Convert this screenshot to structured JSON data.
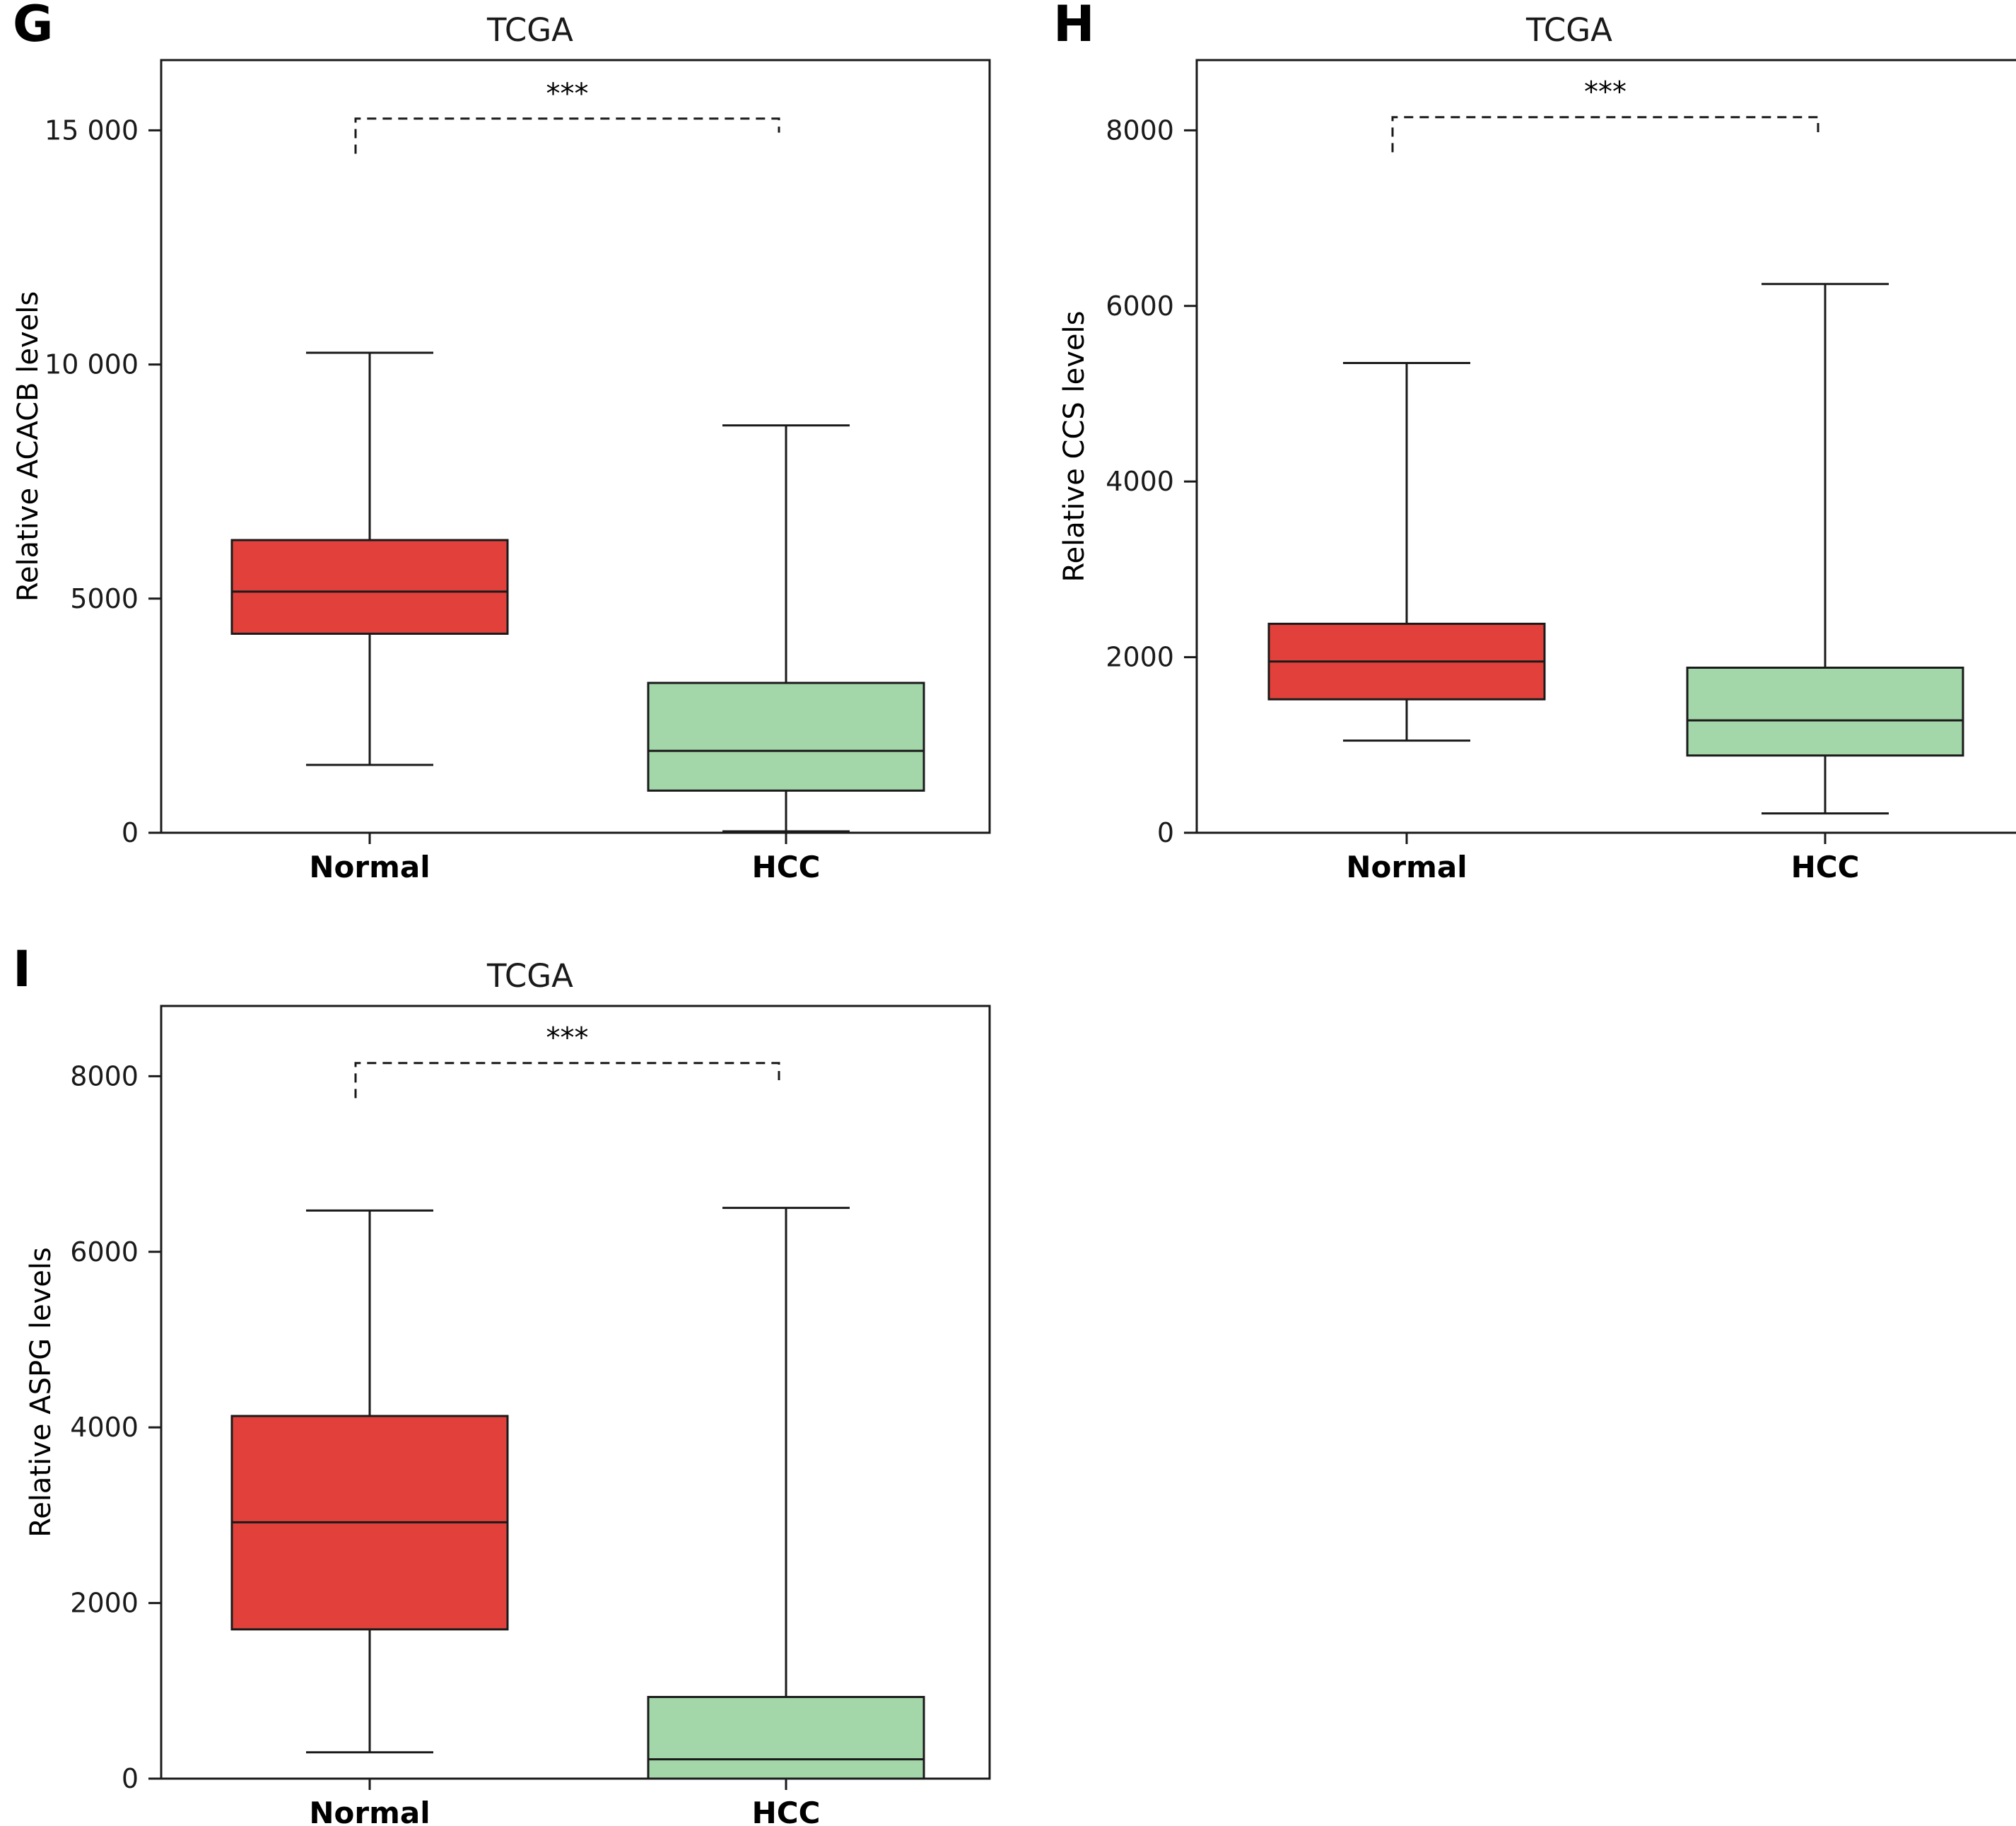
{
  "colors": {
    "normal": "#e2413b",
    "hcc": "#a3d6a9",
    "stroke": "#1a1a1a"
  },
  "chart_data": [
    {
      "panel": "G",
      "type": "box",
      "title": "TCGA",
      "xlabel": "",
      "ylabel": "Relative ACACB levels",
      "categories": [
        "Normal",
        "HCC"
      ],
      "ylim": [
        0,
        16500
      ],
      "yticks": [
        0,
        5000,
        10000,
        15000
      ],
      "ytick_labels": [
        "0",
        "5000",
        "10 000",
        "15 000"
      ],
      "series": [
        {
          "whisker_low": 1450,
          "q1": 4250,
          "median": 5150,
          "q3": 6250,
          "whisker_high": 10250
        },
        {
          "whisker_low": 30,
          "q1": 900,
          "median": 1750,
          "q3": 3200,
          "whisker_high": 8700
        }
      ],
      "significance": {
        "text": "***",
        "line_y": 15250,
        "left_end": 14500,
        "right_end": 14950
      }
    },
    {
      "panel": "H",
      "type": "box",
      "title": "TCGA",
      "xlabel": "",
      "ylabel": "Relative CCS levels",
      "categories": [
        "Normal",
        "HCC"
      ],
      "ylim": [
        0,
        8800
      ],
      "yticks": [
        0,
        2000,
        4000,
        6000,
        8000
      ],
      "ytick_labels": [
        "0",
        "2000",
        "4000",
        "6000",
        "8000"
      ],
      "series": [
        {
          "whisker_low": 1050,
          "q1": 1520,
          "median": 1950,
          "q3": 2380,
          "whisker_high": 5350
        },
        {
          "whisker_low": 220,
          "q1": 880,
          "median": 1280,
          "q3": 1880,
          "whisker_high": 6250
        }
      ],
      "significance": {
        "text": "***",
        "line_y": 8150,
        "left_end": 7750,
        "right_end": 7950
      }
    },
    {
      "panel": "I",
      "type": "box",
      "title": "TCGA",
      "xlabel": "",
      "ylabel": "Relative ASPG levels",
      "categories": [
        "Normal",
        "HCC"
      ],
      "ylim": [
        0,
        8800
      ],
      "yticks": [
        0,
        2000,
        4000,
        6000,
        8000
      ],
      "ytick_labels": [
        "0",
        "2000",
        "4000",
        "6000",
        "8000"
      ],
      "series": [
        {
          "whisker_low": 300,
          "q1": 1700,
          "median": 2920,
          "q3": 4130,
          "whisker_high": 6470
        },
        {
          "whisker_low": 0,
          "q1": 0,
          "median": 220,
          "q3": 930,
          "whisker_high": 6500
        }
      ],
      "significance": {
        "text": "***",
        "line_y": 8150,
        "left_end": 7750,
        "right_end": 7950
      }
    }
  ]
}
